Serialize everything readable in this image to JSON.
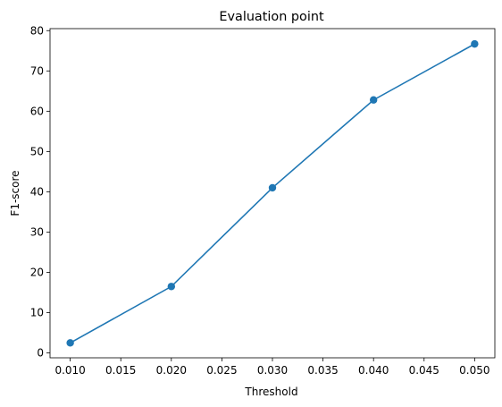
{
  "chart_data": {
    "type": "line",
    "title": "Evaluation point",
    "xlabel": "Threshold",
    "ylabel": "F1-score",
    "x": [
      0.01,
      0.02,
      0.03,
      0.04,
      0.05
    ],
    "series": [
      {
        "values": [
          2.5,
          16.5,
          41.0,
          62.8,
          76.7
        ],
        "color": "#1f77b4",
        "marker": "circle"
      }
    ],
    "xlim": [
      0.008,
      0.052
    ],
    "ylim": [
      -1.2,
      80.5
    ],
    "xticks": [
      "0.010",
      "0.015",
      "0.020",
      "0.025",
      "0.030",
      "0.035",
      "0.040",
      "0.045",
      "0.050"
    ],
    "xtick_values": [
      0.01,
      0.015,
      0.02,
      0.025,
      0.03,
      0.035,
      0.04,
      0.045,
      0.05
    ],
    "yticks": [
      "0",
      "10",
      "20",
      "30",
      "40",
      "50",
      "60",
      "70",
      "80"
    ],
    "ytick_values": [
      0,
      10,
      20,
      30,
      40,
      50,
      60,
      70,
      80
    ],
    "grid": false,
    "legend": "none"
  }
}
